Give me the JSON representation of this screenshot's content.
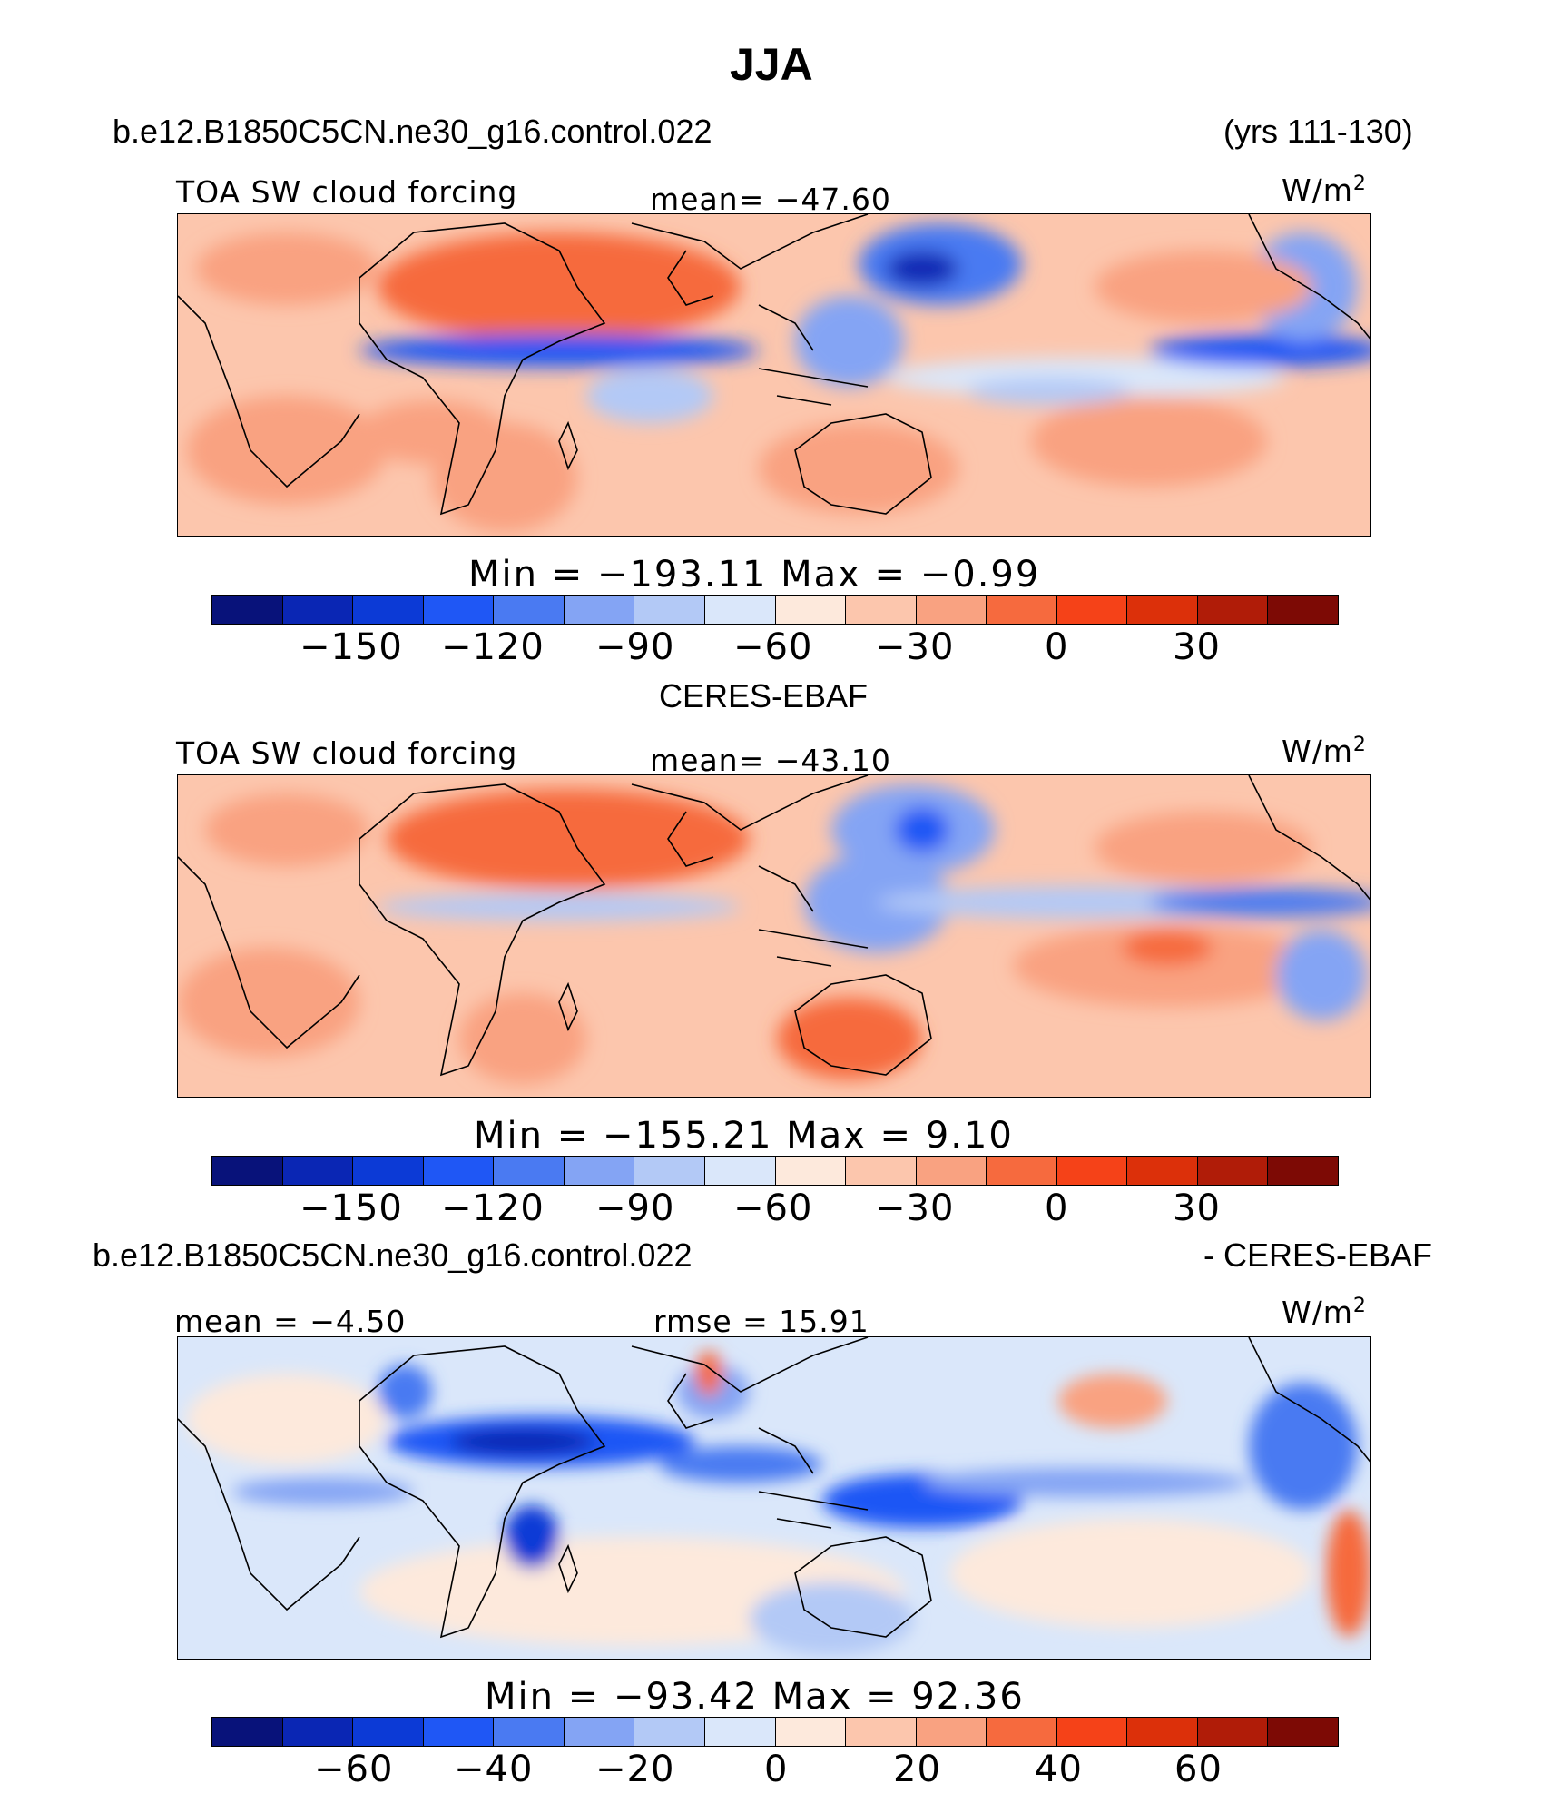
{
  "title": "JJA",
  "header": {
    "case_name": "b.e12.B1850C5CN.ne30_g16.control.022",
    "years": "(yrs 111-130)"
  },
  "colors": {
    "abs_scale": [
      "#08127a",
      "#0a26b4",
      "#0c3ad6",
      "#1f57f5",
      "#4a7af2",
      "#84a4f4",
      "#b3c9f6",
      "#dae7fa",
      "#fde9dc",
      "#fcc6ad",
      "#f9a281",
      "#f66a3e",
      "#f54218",
      "#dc300a",
      "#b01c08",
      "#7d0a05"
    ],
    "diff_scale": [
      "#08127a",
      "#0a26b4",
      "#0c3ad6",
      "#1f57f5",
      "#4a7af2",
      "#84a4f4",
      "#b3c9f6",
      "#dae7fa",
      "#fde9dc",
      "#fcc6ad",
      "#f9a281",
      "#f66a3e",
      "#f54218",
      "#dc300a",
      "#b01c08",
      "#7d0a05"
    ]
  },
  "panels": [
    {
      "var_label": "TOA SW cloud forcing",
      "mean_text": "mean=  −47.60",
      "units_base": "W/m",
      "units_exp": "2",
      "minmax_text": "Min  =  −193.11  Max  =    −0.99",
      "ticks": [
        "−150",
        "−120",
        "−90",
        "−60",
        "−30",
        "0",
        "30"
      ]
    },
    {
      "source_label": "CERES-EBAF",
      "var_label": "TOA SW cloud forcing",
      "mean_text": "mean=  −43.10",
      "units_base": "W/m",
      "units_exp": "2",
      "minmax_text": "Min  =  −155.21  Max  =     9.10",
      "ticks": [
        "−150",
        "−120",
        "−90",
        "−60",
        "−30",
        "0",
        "30"
      ]
    },
    {
      "diff_left": "b.e12.B1850C5CN.ne30_g16.control.022",
      "diff_right": "- CERES-EBAF",
      "mean_text": "mean  =   −4.50",
      "rmse_text": "rmse  =   15.91",
      "units_base": "W/m",
      "units_exp": "2",
      "minmax_text": "Min  =  −93.42  Max  =    92.36",
      "ticks": [
        "−60",
        "−40",
        "−20",
        "0",
        "20",
        "40",
        "60"
      ]
    }
  ],
  "chart_data": [
    {
      "type": "heatmap",
      "title": "TOA SW cloud forcing",
      "subtitle": "b.e12.B1850C5CN.ne30_g16.control.022 (yrs 111-130)",
      "units": "W/m2",
      "mean": -47.6,
      "min": -193.11,
      "max": -0.99,
      "levels": [
        -165,
        -150,
        -135,
        -120,
        -105,
        -90,
        -75,
        -60,
        -45,
        -30,
        -15,
        0,
        15,
        30,
        45
      ],
      "tick_labels": [
        -150,
        -120,
        -90,
        -60,
        -30,
        0,
        30
      ]
    },
    {
      "type": "heatmap",
      "title": "TOA SW cloud forcing",
      "subtitle": "CERES-EBAF",
      "units": "W/m2",
      "mean": -43.1,
      "min": -155.21,
      "max": 9.1,
      "levels": [
        -165,
        -150,
        -135,
        -120,
        -105,
        -90,
        -75,
        -60,
        -45,
        -30,
        -15,
        0,
        15,
        30,
        45
      ],
      "tick_labels": [
        -150,
        -120,
        -90,
        -60,
        -30,
        0,
        30
      ]
    },
    {
      "type": "heatmap",
      "title": "b.e12.B1850C5CN.ne30_g16.control.022 - CERES-EBAF",
      "units": "W/m2",
      "mean": -4.5,
      "rmse": 15.91,
      "min": -93.42,
      "max": 92.36,
      "levels": [
        -70,
        -60,
        -50,
        -40,
        -30,
        -20,
        -10,
        0,
        10,
        20,
        30,
        40,
        50,
        60,
        70
      ],
      "tick_labels": [
        -60,
        -40,
        -20,
        0,
        20,
        40,
        60
      ]
    }
  ]
}
